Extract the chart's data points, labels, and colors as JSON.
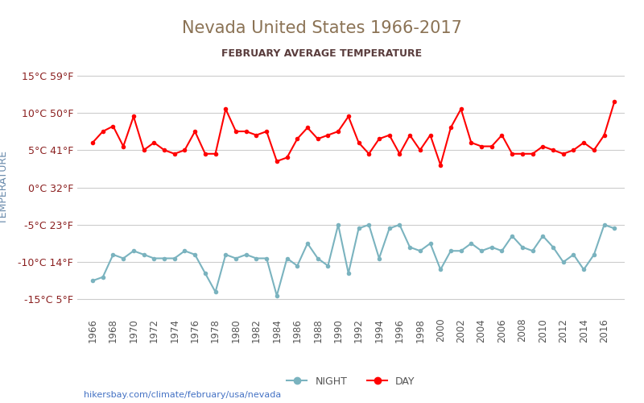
{
  "title": "Nevada United States 1966-2017",
  "subtitle": "FEBRUARY AVERAGE TEMPERATURE",
  "ylabel": "TEMPERATURE",
  "footer": "hikersbay.com/climate/february/usa/nevada",
  "ylim": [
    -17,
    17
  ],
  "yticks": [
    -15,
    -10,
    -5,
    0,
    5,
    10,
    15
  ],
  "ytick_labels_c": [
    "-15°C",
    "-10°C",
    "-5°C",
    "0°C",
    "5°C",
    "10°C",
    "15°C"
  ],
  "ytick_labels_f": [
    "5°F",
    "14°F",
    "23°F",
    "32°F",
    "41°F",
    "50°F",
    "59°F"
  ],
  "years": [
    1966,
    1967,
    1968,
    1969,
    1970,
    1971,
    1972,
    1973,
    1974,
    1975,
    1976,
    1977,
    1978,
    1979,
    1980,
    1981,
    1982,
    1983,
    1984,
    1985,
    1986,
    1987,
    1988,
    1989,
    1990,
    1991,
    1992,
    1993,
    1994,
    1995,
    1996,
    1997,
    1998,
    1999,
    2000,
    2001,
    2002,
    2003,
    2004,
    2005,
    2006,
    2007,
    2008,
    2009,
    2010,
    2011,
    2012,
    2013,
    2014,
    2015,
    2016,
    2017
  ],
  "day_temps": [
    6.0,
    7.5,
    8.2,
    5.5,
    9.5,
    5.0,
    6.0,
    5.0,
    4.5,
    5.0,
    7.5,
    4.5,
    4.5,
    10.5,
    7.5,
    7.5,
    7.0,
    7.5,
    3.5,
    4.0,
    6.5,
    8.0,
    6.5,
    7.0,
    7.5,
    9.5,
    6.0,
    4.5,
    6.5,
    7.0,
    4.5,
    7.0,
    5.0,
    7.0,
    3.0,
    8.0,
    10.5,
    6.0,
    5.5,
    5.5,
    7.0,
    4.5,
    4.5,
    4.5,
    5.5,
    5.0,
    4.5,
    5.0,
    6.0,
    5.0,
    7.0,
    11.5
  ],
  "night_temps": [
    -12.5,
    -12.0,
    -9.0,
    -9.5,
    -8.5,
    -9.0,
    -9.5,
    -9.5,
    -9.5,
    -8.5,
    -9.0,
    -11.5,
    -14.0,
    -9.0,
    -9.5,
    -9.0,
    -9.5,
    -9.5,
    -14.5,
    -9.5,
    -10.5,
    -7.5,
    -9.5,
    -10.5,
    -5.0,
    -11.5,
    -5.5,
    -5.0,
    -9.5,
    -5.5,
    -5.0,
    -8.0,
    -8.5,
    -7.5,
    -11.0,
    -8.5,
    -8.5,
    -7.5,
    -8.5,
    -8.0,
    -8.5,
    -6.5,
    -8.0,
    -8.5,
    -6.5,
    -8.0,
    -10.0,
    -9.0,
    -11.0,
    -9.0,
    -5.0,
    -5.5
  ],
  "day_color": "#ff0000",
  "night_color": "#7ab3bf",
  "day_label": "DAY",
  "night_label": "NIGHT",
  "title_color": "#8b7355",
  "subtitle_color": "#5a3d3d",
  "axis_label_color": "#6688aa",
  "tick_color": "#8b2020",
  "grid_color": "#cccccc",
  "bg_color": "#ffffff",
  "footer_color": "#4472c4",
  "marker_size": 4
}
